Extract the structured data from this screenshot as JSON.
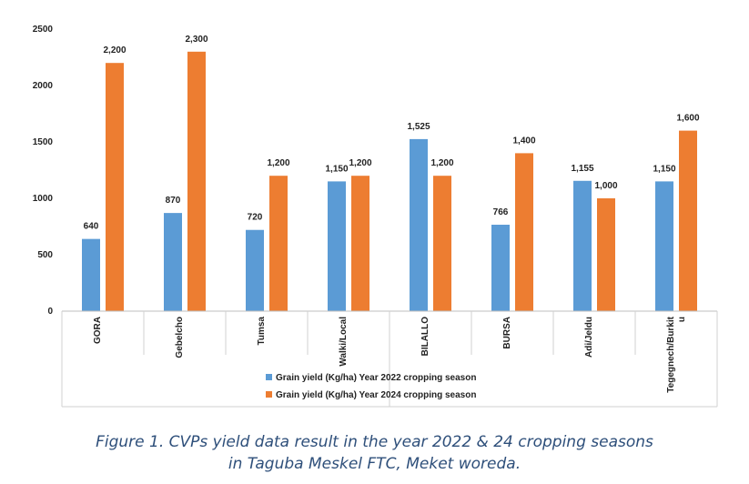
{
  "chart_data": {
    "type": "bar",
    "categories": [
      "GORA",
      "Gebelcho",
      "Tumsa",
      "Walki/Local",
      "BILALLO",
      "BURSA",
      "Adi/Jeldu",
      "Tegegnech/Burkitu"
    ],
    "category_display": [
      "GORA",
      "Gebelcho",
      "Tumsa",
      "Walki/Local",
      "BILALLO",
      "BURSA",
      "Adi/Jeldu",
      [
        "Tegegnech/Burkit",
        "u"
      ]
    ],
    "series": [
      {
        "name": "Grain yield  (Kg/ha)  Year 2022 cropping season",
        "color": "#5b9bd5",
        "values": [
          640,
          870,
          720,
          1150,
          1525,
          766,
          1155,
          1150
        ],
        "labels": [
          "640",
          "870",
          "720",
          "1,150",
          "1,525",
          "766",
          "1,155",
          "1,150"
        ]
      },
      {
        "name": "Grain yield  (Kg/ha)  Year 2024 cropping season",
        "color": "#ed7d31",
        "values": [
          2200,
          2300,
          1200,
          1200,
          1200,
          1400,
          1000,
          1600
        ],
        "labels": [
          "2,200",
          "2,300",
          "1,200",
          "1,200",
          "1,200",
          "1,400",
          "1,000",
          "1,600"
        ]
      }
    ],
    "ylim": [
      0,
      2500
    ],
    "yticks": [
      0,
      500,
      1000,
      1500,
      2000,
      2500
    ],
    "title": "",
    "xlabel": "",
    "ylabel": "",
    "grid": false,
    "legend_position": "bottom"
  },
  "caption": {
    "line1": "Figure 1. CVPs yield data result in the year 2022 & 24 cropping seasons",
    "line2": "in Taguba Meskel FTC, Meket woreda."
  }
}
